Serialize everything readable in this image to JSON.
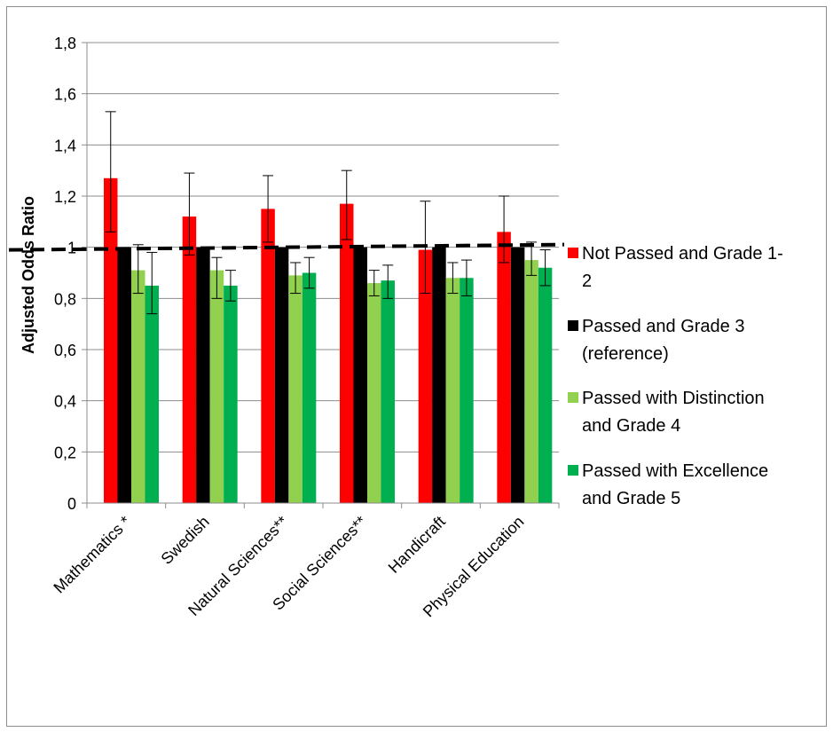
{
  "chart_data": {
    "type": "bar",
    "title": "",
    "xlabel": "",
    "ylabel": "Adjusted Odds Ratio",
    "ylim": [
      0,
      1.8
    ],
    "yticks": [
      "0",
      "0,2",
      "0,4",
      "0,6",
      "0,8",
      "1",
      "1,2",
      "1,4",
      "1,6",
      "1,8"
    ],
    "grid": true,
    "legend_position": "right",
    "reference_line": 1.0,
    "categories": [
      "Mathematics *",
      "Swedish",
      "Natural Sciences**",
      "Social Sciences**",
      "Handicraft",
      "Physical Education"
    ],
    "series": [
      {
        "name": "Not Passed and Grade 1-2",
        "legend_lines": [
          "Not Passed and Grade 1-",
          "2"
        ],
        "color": "#ff0000",
        "values": [
          1.27,
          1.12,
          1.15,
          1.17,
          0.99,
          1.06
        ],
        "err_low": [
          1.06,
          0.97,
          1.02,
          1.03,
          0.82,
          0.94
        ],
        "err_high": [
          1.53,
          1.29,
          1.28,
          1.3,
          1.18,
          1.2
        ]
      },
      {
        "name": "Passed and Grade 3 (reference)",
        "legend_lines": [
          "Passed and Grade 3",
          "(reference)"
        ],
        "color": "#000000",
        "values": [
          1.0,
          1.0,
          1.0,
          1.0,
          1.0,
          1.0
        ],
        "err_low": [
          null,
          null,
          null,
          null,
          null,
          null
        ],
        "err_high": [
          null,
          null,
          null,
          null,
          null,
          null
        ]
      },
      {
        "name": "Passed with Distinction and Grade 4",
        "legend_lines": [
          "Passed with Distinction",
          "and Grade 4"
        ],
        "color": "#92d050",
        "values": [
          0.91,
          0.91,
          0.89,
          0.86,
          0.88,
          0.95
        ],
        "err_low": [
          0.82,
          0.8,
          0.82,
          0.81,
          0.82,
          0.89
        ],
        "err_high": [
          1.01,
          0.96,
          0.94,
          0.91,
          0.94,
          1.02
        ]
      },
      {
        "name": "Passed with Excellence and Grade 5",
        "legend_lines": [
          "Passed with Excellence",
          "and Grade 5"
        ],
        "color": "#00b050",
        "values": [
          0.85,
          0.85,
          0.9,
          0.87,
          0.88,
          0.92
        ],
        "err_low": [
          0.74,
          0.79,
          0.84,
          0.8,
          0.81,
          0.85
        ],
        "err_high": [
          0.98,
          0.91,
          0.96,
          0.93,
          0.95,
          0.99
        ]
      }
    ]
  }
}
